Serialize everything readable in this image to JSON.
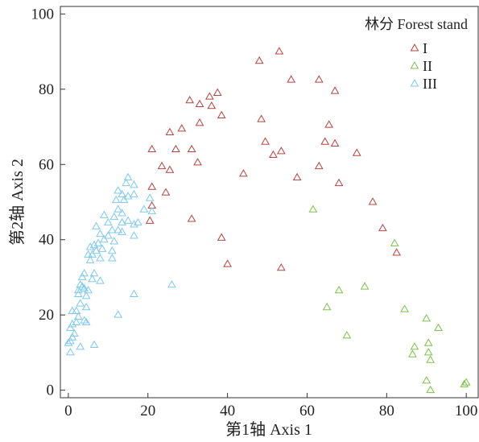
{
  "chart_data": {
    "type": "scatter",
    "xlabel": "第1轴 Axis 1",
    "ylabel": "第2轴 Axis 2",
    "xlim": [
      -2,
      103
    ],
    "ylim": [
      -2,
      102
    ],
    "x_ticks": [
      0,
      20,
      40,
      60,
      80,
      100
    ],
    "y_ticks": [
      0,
      20,
      40,
      60,
      80,
      100
    ],
    "grid": false,
    "marker": "open-triangle",
    "legend": {
      "title": "林分 Forest stand",
      "placement": "top-right"
    },
    "series": [
      {
        "name": "I",
        "color": "#b5433f",
        "points": [
          [
            48,
            87.5
          ],
          [
            53,
            90
          ],
          [
            56,
            82.5
          ],
          [
            63,
            82.5
          ],
          [
            67,
            79.5
          ],
          [
            30.5,
            77
          ],
          [
            33,
            76
          ],
          [
            35.5,
            78
          ],
          [
            36,
            75.5
          ],
          [
            37.5,
            79
          ],
          [
            33,
            71
          ],
          [
            38.5,
            73
          ],
          [
            48.5,
            72
          ],
          [
            25.5,
            68.5
          ],
          [
            28.5,
            69.5
          ],
          [
            27,
            64
          ],
          [
            31,
            64
          ],
          [
            32.5,
            60.5
          ],
          [
            21,
            64
          ],
          [
            23.5,
            59.5
          ],
          [
            25.5,
            58.5
          ],
          [
            21,
            54
          ],
          [
            21,
            49
          ],
          [
            24.5,
            52.5
          ],
          [
            20.5,
            45
          ],
          [
            31,
            45.5
          ],
          [
            38.5,
            40.5
          ],
          [
            40,
            33.5
          ],
          [
            44,
            57.5
          ],
          [
            49.5,
            66
          ],
          [
            51.5,
            62.5
          ],
          [
            53.5,
            63.5
          ],
          [
            57.5,
            56.5
          ],
          [
            53.5,
            32.5
          ],
          [
            64.5,
            66
          ],
          [
            65.5,
            70.5
          ],
          [
            67,
            65.5
          ],
          [
            63,
            59.5
          ],
          [
            68,
            55
          ],
          [
            72.5,
            63
          ],
          [
            76.5,
            50
          ],
          [
            79,
            43
          ],
          [
            82.5,
            36.5
          ]
        ]
      },
      {
        "name": "II",
        "color": "#7cc24a",
        "points": [
          [
            61.5,
            48
          ],
          [
            82,
            39
          ],
          [
            74.5,
            27.5
          ],
          [
            68,
            26.5
          ],
          [
            65,
            22
          ],
          [
            70,
            14.5
          ],
          [
            84.5,
            21.5
          ],
          [
            87,
            11.5
          ],
          [
            86.5,
            9.5
          ],
          [
            90,
            19
          ],
          [
            93,
            16.5
          ],
          [
            90.5,
            12.5
          ],
          [
            90.5,
            10
          ],
          [
            91,
            8
          ],
          [
            90,
            2.5
          ],
          [
            91,
            0
          ],
          [
            100,
            2
          ],
          [
            99.5,
            1.5
          ]
        ]
      },
      {
        "name": "III",
        "color": "#7ec8ee",
        "points": [
          [
            15,
            56.5
          ],
          [
            14.5,
            55
          ],
          [
            16.5,
            54.5
          ],
          [
            12.5,
            53
          ],
          [
            13.5,
            52
          ],
          [
            15,
            51.5
          ],
          [
            16.5,
            52
          ],
          [
            14,
            50.5
          ],
          [
            12,
            50.5
          ],
          [
            12.5,
            48
          ],
          [
            13.5,
            47
          ],
          [
            11.5,
            46
          ],
          [
            13.5,
            44.5
          ],
          [
            16.5,
            44
          ],
          [
            15,
            45
          ],
          [
            17.5,
            44.5
          ],
          [
            20.5,
            51
          ],
          [
            19,
            48
          ],
          [
            21,
            47.5
          ],
          [
            10,
            44.5
          ],
          [
            9,
            46.5
          ],
          [
            11,
            42.5
          ],
          [
            12.5,
            42.5
          ],
          [
            13.5,
            42
          ],
          [
            10,
            41
          ],
          [
            11.5,
            39.5
          ],
          [
            9,
            40
          ],
          [
            8,
            41.5
          ],
          [
            7.5,
            39
          ],
          [
            6.5,
            38.5
          ],
          [
            7,
            37
          ],
          [
            8.5,
            37.5
          ],
          [
            6,
            36
          ],
          [
            5,
            36
          ],
          [
            5.5,
            38
          ],
          [
            7,
            43.5
          ],
          [
            11,
            37
          ],
          [
            11,
            35
          ],
          [
            16.5,
            41
          ],
          [
            5.5,
            34.5
          ],
          [
            8,
            35
          ],
          [
            4,
            31
          ],
          [
            3.5,
            30
          ],
          [
            6.5,
            31
          ],
          [
            6,
            29.5
          ],
          [
            8,
            29
          ],
          [
            3,
            28
          ],
          [
            3.5,
            27.5
          ],
          [
            2.5,
            26.5
          ],
          [
            4,
            27
          ],
          [
            5,
            26.5
          ],
          [
            2.5,
            25.5
          ],
          [
            4.5,
            25
          ],
          [
            3,
            23
          ],
          [
            4.5,
            22
          ],
          [
            2,
            21
          ],
          [
            1,
            21
          ],
          [
            2.5,
            19.5
          ],
          [
            2,
            18
          ],
          [
            1,
            17.5
          ],
          [
            0.5,
            16.5
          ],
          [
            1.5,
            15
          ],
          [
            4,
            18.5
          ],
          [
            4.5,
            18
          ],
          [
            0.5,
            13
          ],
          [
            0,
            12.5
          ],
          [
            1,
            14
          ],
          [
            6.5,
            12
          ],
          [
            3,
            11.5
          ],
          [
            0.5,
            10
          ],
          [
            12.5,
            20
          ],
          [
            16.5,
            25.5
          ],
          [
            26,
            28
          ]
        ]
      }
    ]
  }
}
